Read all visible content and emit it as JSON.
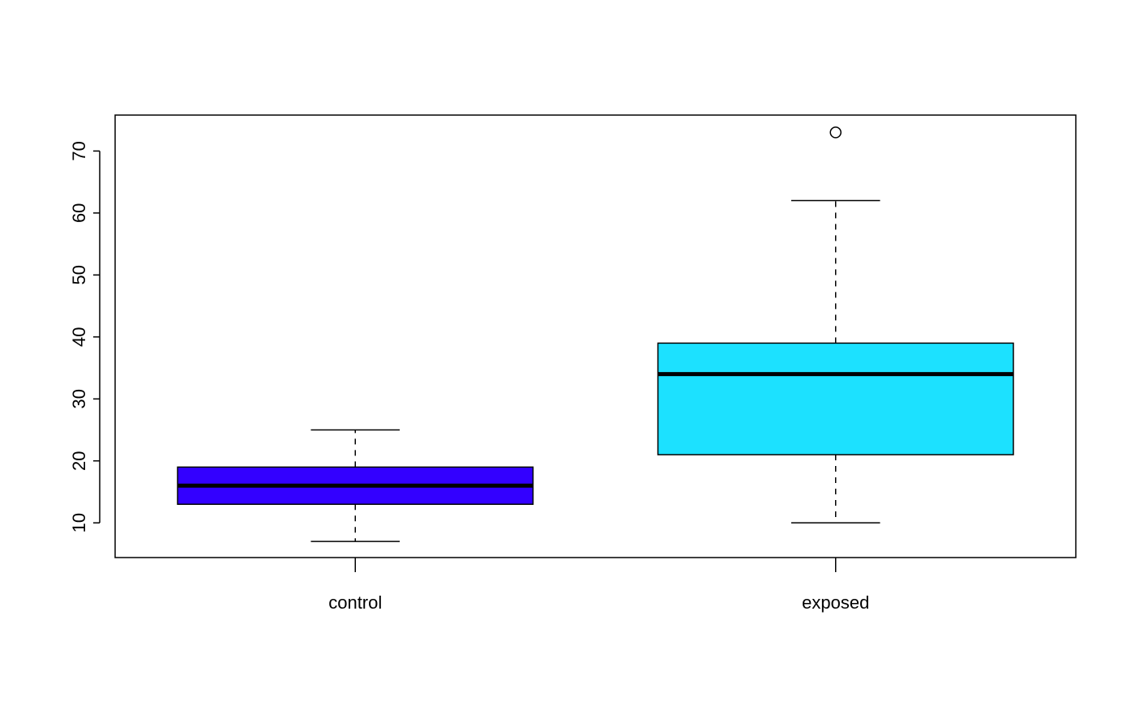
{
  "chart_data": {
    "type": "boxplot",
    "title": "",
    "xlabel": "",
    "ylabel": "",
    "ylim": [
      4.4,
      75.8
    ],
    "yticks": [
      10,
      20,
      30,
      40,
      50,
      60,
      70
    ],
    "ytick_labels": [
      "10",
      "20",
      "30",
      "40",
      "50",
      "60",
      "70"
    ],
    "grid": false,
    "categories": [
      "control",
      "exposed"
    ],
    "boxes": [
      {
        "name": "control",
        "whisker_low": 7,
        "q1": 13,
        "median": 16,
        "q3": 19,
        "whisker_high": 25,
        "outliers": [],
        "color": "#3300ff"
      },
      {
        "name": "exposed",
        "whisker_low": 10,
        "q1": 21,
        "median": 34,
        "q3": 39,
        "whisker_high": 62,
        "outliers": [
          73
        ],
        "color": "#1ce1ff"
      }
    ]
  }
}
